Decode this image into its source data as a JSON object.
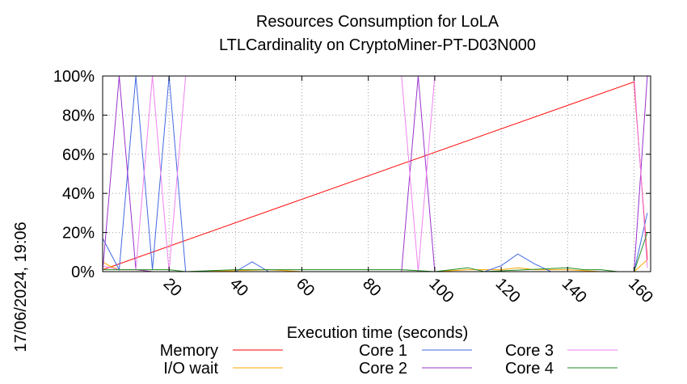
{
  "chart_data": {
    "type": "line",
    "title": "Resources Consumption for LoLA",
    "subtitle": "LTLCardinality on CryptoMiner-PT-D03N000",
    "xlabel": "Execution time (seconds)",
    "ylabel": "",
    "timestamp": "17/06/2024, 19:06",
    "xlim": [
      0,
      165
    ],
    "ylim": [
      0,
      100
    ],
    "x_ticks": [
      20,
      40,
      60,
      80,
      100,
      120,
      140,
      160
    ],
    "y_ticks": [
      {
        "value": 0,
        "label": "0%"
      },
      {
        "value": 20,
        "label": "20%"
      },
      {
        "value": 40,
        "label": "40%"
      },
      {
        "value": 60,
        "label": "60%"
      },
      {
        "value": 80,
        "label": "80%"
      },
      {
        "value": 100,
        "label": "100%"
      }
    ],
    "grid": true,
    "legend_position": "bottom",
    "series": [
      {
        "name": "Memory",
        "color": "#ff0000",
        "points": [
          [
            0,
            1
          ],
          [
            160,
            97
          ],
          [
            164,
            6
          ]
        ]
      },
      {
        "name": "I/O wait",
        "color": "#ffa500",
        "points": [
          [
            0,
            5
          ],
          [
            2,
            3
          ],
          [
            5,
            1
          ],
          [
            10,
            1
          ],
          [
            15,
            0
          ],
          [
            30,
            0
          ],
          [
            50,
            1
          ],
          [
            60,
            0
          ],
          [
            80,
            0
          ],
          [
            100,
            0
          ],
          [
            110,
            1
          ],
          [
            120,
            1
          ],
          [
            125,
            2
          ],
          [
            130,
            1
          ],
          [
            140,
            1
          ],
          [
            150,
            0
          ],
          [
            160,
            0
          ],
          [
            164,
            6
          ]
        ]
      },
      {
        "name": "Core 1",
        "color": "#4169e1",
        "points": [
          [
            0,
            17
          ],
          [
            5,
            1
          ],
          [
            10,
            100
          ],
          [
            15,
            1
          ],
          [
            20,
            100
          ],
          [
            25,
            0
          ],
          [
            40,
            0
          ],
          [
            45,
            5
          ],
          [
            50,
            0
          ],
          [
            90,
            0
          ],
          [
            100,
            0
          ],
          [
            115,
            0
          ],
          [
            120,
            3
          ],
          [
            125,
            9
          ],
          [
            130,
            4
          ],
          [
            135,
            0
          ],
          [
            160,
            0
          ],
          [
            164,
            30
          ]
        ]
      },
      {
        "name": "Core 2",
        "color": "#9932cc",
        "points": [
          [
            0,
            0
          ],
          [
            5,
            100
          ],
          [
            10,
            1
          ],
          [
            15,
            0
          ],
          [
            90,
            0
          ],
          [
            95,
            100
          ],
          [
            100,
            0
          ],
          [
            160,
            0
          ],
          [
            164,
            100
          ]
        ]
      },
      {
        "name": "Core 3",
        "color": "#ee82ee",
        "points": [
          [
            0,
            3
          ],
          [
            5,
            1
          ],
          [
            10,
            1
          ],
          [
            15,
            100
          ],
          [
            20,
            0
          ],
          [
            25,
            100
          ],
          [
            90,
            100
          ],
          [
            95,
            0
          ],
          [
            100,
            100
          ],
          [
            160,
            100
          ],
          [
            164,
            2
          ]
        ]
      },
      {
        "name": "Core 4",
        "color": "#228b22",
        "points": [
          [
            0,
            1
          ],
          [
            5,
            1
          ],
          [
            20,
            1
          ],
          [
            25,
            0
          ],
          [
            40,
            1
          ],
          [
            55,
            1
          ],
          [
            60,
            1
          ],
          [
            90,
            1
          ],
          [
            100,
            0
          ],
          [
            110,
            2
          ],
          [
            115,
            0
          ],
          [
            140,
            2
          ],
          [
            145,
            1
          ],
          [
            150,
            1
          ],
          [
            155,
            0
          ],
          [
            160,
            0
          ],
          [
            164,
            20
          ]
        ]
      }
    ]
  }
}
